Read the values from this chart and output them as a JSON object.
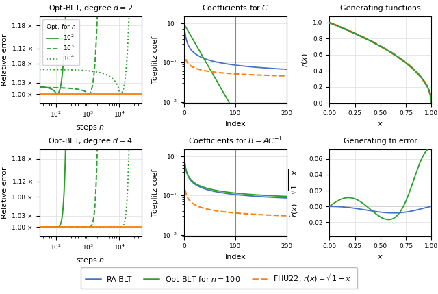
{
  "title_top_left": "Opt-BLT, degree $d = 2$",
  "title_top_mid": "Coefficients for $C$",
  "title_top_right": "Generating functions",
  "title_bot_left": "Opt-BLT, degree $d = 4$",
  "title_bot_mid": "Coefficients for $B = AC^{-1}$",
  "title_bot_right": "Generating fn error",
  "xlabel_left": "steps $n$",
  "xlabel_mid": "Index",
  "xlabel_right": "$x$",
  "ylabel_left": "Relative error",
  "ylabel_mid": "Toeplitz coef",
  "ylabel_right_top": "$r(x)$",
  "ylabel_right_bot": "$\\hat{r}(x) - \\sqrt{1-x}$",
  "color_ra": "#4472C4",
  "color_opt": "#2ca02c",
  "color_fhu": "#ff7f0e",
  "legend_entries": [
    "RA-BLT",
    "Opt-BLT for $n = 100$",
    "FHU22, $r(x) = \\sqrt{1-x}$"
  ]
}
